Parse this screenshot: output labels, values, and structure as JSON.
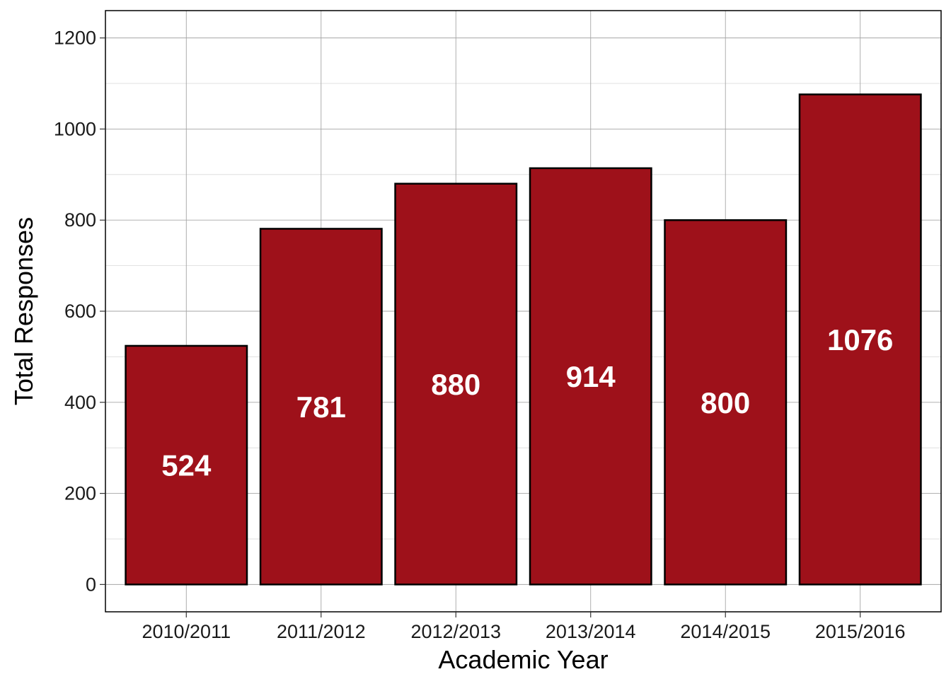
{
  "chart_data": {
    "type": "bar",
    "categories": [
      "2010/2011",
      "2011/2012",
      "2012/2013",
      "2013/2014",
      "2014/2015",
      "2015/2016"
    ],
    "values": [
      524,
      781,
      880,
      914,
      800,
      1076
    ],
    "data_labels": [
      "524",
      "781",
      "880",
      "914",
      "800",
      "1076"
    ],
    "xlabel": "Academic Year",
    "ylabel": "Total Responses",
    "ylim": [
      -60,
      1260
    ],
    "yticks": [
      0,
      200,
      400,
      600,
      800,
      1000,
      1200
    ],
    "ytick_labels": [
      "0",
      "200",
      "400",
      "600",
      "800",
      "1000",
      "1200"
    ],
    "grid": true,
    "legend": "none",
    "colors": {
      "bar_fill": "#9E111A",
      "bar_stroke": "#000000",
      "label_text": "#FFFFFF",
      "grid_major": "#A6A6A6",
      "grid_minor": "#D9D9D9",
      "panel_border": "#000000"
    }
  }
}
